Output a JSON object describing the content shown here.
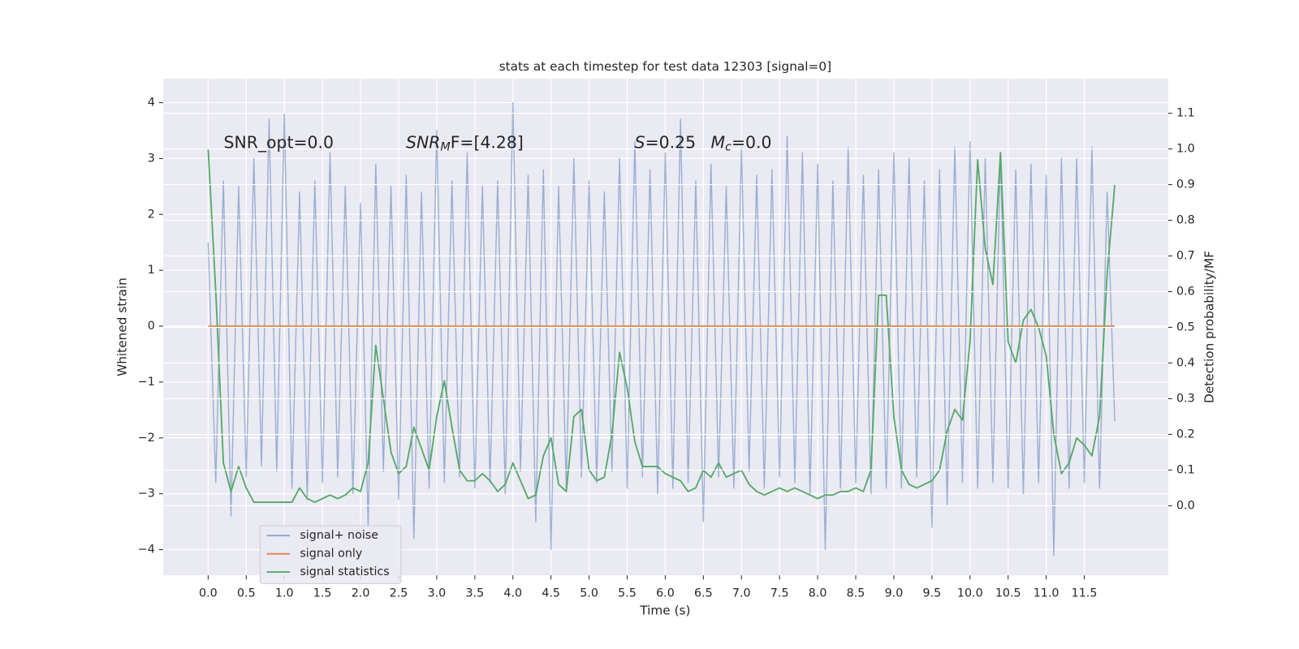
{
  "chart_data": {
    "type": "line",
    "title": "stats at each timestep for test data 12303 [signal=0]",
    "xlabel": "Time (s)",
    "ylabel": "Whitened strain",
    "y2label": "Detection probability/MF",
    "annotations": [
      [
        {
          "text": "SNR_opt=0.0"
        }
      ],
      [
        {
          "text": "SNR",
          "italic": true
        },
        {
          "text": "M",
          "italic": true,
          "sub": true
        },
        {
          "text": "F=[4.28]"
        }
      ],
      [
        {
          "text": "S",
          "italic": true
        },
        {
          "text": "=0.25"
        }
      ],
      [
        {
          "text": "M",
          "italic": true
        },
        {
          "text": "c",
          "italic": true,
          "sub": true
        },
        {
          "text": "=0.0"
        }
      ]
    ],
    "x": [
      0,
      0.1,
      0.2,
      0.3,
      0.4,
      0.5,
      0.6,
      0.7,
      0.8,
      0.9,
      1,
      1.1,
      1.2,
      1.3,
      1.4,
      1.5,
      1.6,
      1.7,
      1.8,
      1.9,
      2,
      2.1,
      2.2,
      2.3,
      2.4,
      2.5,
      2.6,
      2.7,
      2.8,
      2.9,
      3,
      3.1,
      3.2,
      3.3,
      3.4,
      3.5,
      3.6,
      3.7,
      3.8,
      3.9,
      4,
      4.1,
      4.2,
      4.3,
      4.4,
      4.5,
      4.6,
      4.7,
      4.8,
      4.9,
      5,
      5.1,
      5.2,
      5.3,
      5.4,
      5.5,
      5.6,
      5.7,
      5.8,
      5.9,
      6,
      6.1,
      6.2,
      6.3,
      6.4,
      6.5,
      6.6,
      6.7,
      6.8,
      6.9,
      7,
      7.1,
      7.2,
      7.3,
      7.4,
      7.5,
      7.6,
      7.7,
      7.8,
      7.9,
      8,
      8.1,
      8.2,
      8.3,
      8.4,
      8.5,
      8.6,
      8.7,
      8.8,
      8.9,
      9,
      9.1,
      9.2,
      9.3,
      9.4,
      9.5,
      9.6,
      9.7,
      9.8,
      9.9,
      10,
      10.1,
      10.2,
      10.3,
      10.4,
      10.5,
      10.6,
      10.7,
      10.8,
      10.9,
      11,
      11.1,
      11.2,
      11.3,
      11.4,
      11.5,
      11.6,
      11.7,
      11.8,
      11.9
    ],
    "series": [
      {
        "name": "signal+ noise",
        "color": "#4c72b0",
        "axis": "y",
        "values": [
          1.5,
          -2.8,
          2.6,
          -3.4,
          2.5,
          -2.7,
          3.0,
          -2.5,
          3.7,
          -2.6,
          3.8,
          -2.9,
          2.4,
          -3.1,
          2.6,
          -2.8,
          3.1,
          -2.7,
          2.5,
          -3.0,
          2.2,
          -3.6,
          2.9,
          -2.6,
          2.5,
          -3.1,
          2.7,
          -3.8,
          2.4,
          -2.9,
          3.5,
          -2.8,
          2.6,
          -2.7,
          3.1,
          -2.9,
          2.5,
          -2.8,
          2.6,
          -3.0,
          4.0,
          -2.6,
          2.7,
          -3.5,
          2.8,
          -4.0,
          2.5,
          -2.9,
          3.0,
          -2.7,
          2.6,
          -2.8,
          2.4,
          -2.6,
          3.0,
          -2.9,
          3.3,
          -2.7,
          2.8,
          -3.0,
          3.1,
          -2.9,
          3.7,
          -2.8,
          2.6,
          -3.5,
          2.9,
          -2.7,
          2.5,
          -2.9,
          3.2,
          -2.6,
          2.7,
          -2.9,
          2.8,
          -2.7,
          3.4,
          -2.8,
          3.1,
          -3.0,
          2.9,
          -4.0,
          2.6,
          -2.9,
          3.2,
          -2.8,
          2.7,
          -3.0,
          2.8,
          -2.9,
          3.1,
          -2.9,
          3.0,
          -2.7,
          2.6,
          -3.6,
          2.8,
          -3.2,
          3.2,
          -2.8,
          3.3,
          -2.9,
          3.0,
          -2.8,
          3.1,
          -2.9,
          2.8,
          -3.0,
          2.9,
          -2.8,
          2.7,
          -4.1,
          3.0,
          -2.9,
          3.0,
          -2.8,
          3.2,
          -2.9,
          2.4,
          -1.7
        ]
      },
      {
        "name": "signal only",
        "color": "#dd8452",
        "axis": "y",
        "values": [
          0,
          0,
          0,
          0,
          0,
          0,
          0,
          0,
          0,
          0,
          0,
          0,
          0,
          0,
          0,
          0,
          0,
          0,
          0,
          0,
          0,
          0,
          0,
          0,
          0,
          0,
          0,
          0,
          0,
          0,
          0,
          0,
          0,
          0,
          0,
          0,
          0,
          0,
          0,
          0,
          0,
          0,
          0,
          0,
          0,
          0,
          0,
          0,
          0,
          0,
          0,
          0,
          0,
          0,
          0,
          0,
          0,
          0,
          0,
          0,
          0,
          0,
          0,
          0,
          0,
          0,
          0,
          0,
          0,
          0,
          0,
          0,
          0,
          0,
          0,
          0,
          0,
          0,
          0,
          0,
          0,
          0,
          0,
          0,
          0,
          0,
          0,
          0,
          0,
          0,
          0,
          0,
          0,
          0,
          0,
          0,
          0,
          0,
          0,
          0,
          0,
          0,
          0,
          0,
          0,
          0,
          0,
          0,
          0,
          0,
          0,
          0,
          0,
          0,
          0,
          0,
          0,
          0,
          0,
          0
        ]
      },
      {
        "name": "signal statistics",
        "color": "#55a868",
        "axis": "y2",
        "values": [
          1.0,
          0.6,
          0.12,
          0.04,
          0.11,
          0.05,
          0.01,
          0.01,
          0.01,
          0.01,
          0.01,
          0.01,
          0.05,
          0.02,
          0.01,
          0.02,
          0.03,
          0.02,
          0.03,
          0.05,
          0.04,
          0.12,
          0.45,
          0.3,
          0.15,
          0.09,
          0.11,
          0.22,
          0.16,
          0.1,
          0.25,
          0.35,
          0.22,
          0.1,
          0.07,
          0.07,
          0.09,
          0.07,
          0.04,
          0.06,
          0.12,
          0.07,
          0.02,
          0.03,
          0.14,
          0.19,
          0.06,
          0.04,
          0.25,
          0.27,
          0.1,
          0.07,
          0.08,
          0.2,
          0.43,
          0.33,
          0.18,
          0.11,
          0.11,
          0.11,
          0.09,
          0.08,
          0.07,
          0.04,
          0.05,
          0.1,
          0.08,
          0.12,
          0.08,
          0.09,
          0.1,
          0.06,
          0.04,
          0.03,
          0.04,
          0.05,
          0.04,
          0.05,
          0.04,
          0.03,
          0.02,
          0.03,
          0.03,
          0.04,
          0.04,
          0.05,
          0.04,
          0.1,
          0.59,
          0.59,
          0.25,
          0.1,
          0.06,
          0.05,
          0.06,
          0.07,
          0.1,
          0.21,
          0.27,
          0.24,
          0.46,
          0.97,
          0.72,
          0.62,
          0.99,
          0.46,
          0.4,
          0.52,
          0.55,
          0.5,
          0.42,
          0.2,
          0.09,
          0.12,
          0.19,
          0.17,
          0.14,
          0.25,
          0.65,
          0.9
        ]
      }
    ],
    "xlim": [
      -0.59,
      12.6
    ],
    "xticks": [
      {
        "value": 0,
        "label": "0.0"
      },
      0.5,
      {
        "value": 1,
        "label": "1.0"
      },
      1.5,
      {
        "value": 2,
        "label": "2.0"
      },
      2.5,
      {
        "value": 3,
        "label": "3.0"
      },
      3.5,
      {
        "value": 4,
        "label": "4.0"
      },
      4.5,
      {
        "value": 5,
        "label": "5.0"
      },
      5.5,
      {
        "value": 6,
        "label": "6.0"
      },
      6.5,
      {
        "value": 7,
        "label": "7.0"
      },
      7.5,
      {
        "value": 8,
        "label": "8.0"
      },
      8.5,
      {
        "value": 9,
        "label": "9.0"
      },
      9.5,
      {
        "value": 10,
        "label": "10.0"
      },
      10.5,
      {
        "value": 11,
        "label": "11.0"
      },
      11.5
    ],
    "ylim": [
      -4.46,
      4.43
    ],
    "yticks": [
      {
        "value": -4,
        "label": "−4"
      },
      {
        "value": -3,
        "label": "−3"
      },
      {
        "value": -2,
        "label": "−2"
      },
      {
        "value": -1,
        "label": "−1"
      },
      0,
      1,
      2,
      3,
      4
    ],
    "y2lim": [
      -0.195,
      1.197
    ],
    "y2ticks": [
      {
        "value": 0,
        "label": "0.0"
      },
      0.1,
      0.2,
      0.3,
      0.4,
      0.5,
      0.6,
      0.7,
      0.8,
      0.9,
      {
        "value": 1,
        "label": "1.0"
      },
      1.1
    ],
    "grid": true,
    "legend": "lower left"
  }
}
